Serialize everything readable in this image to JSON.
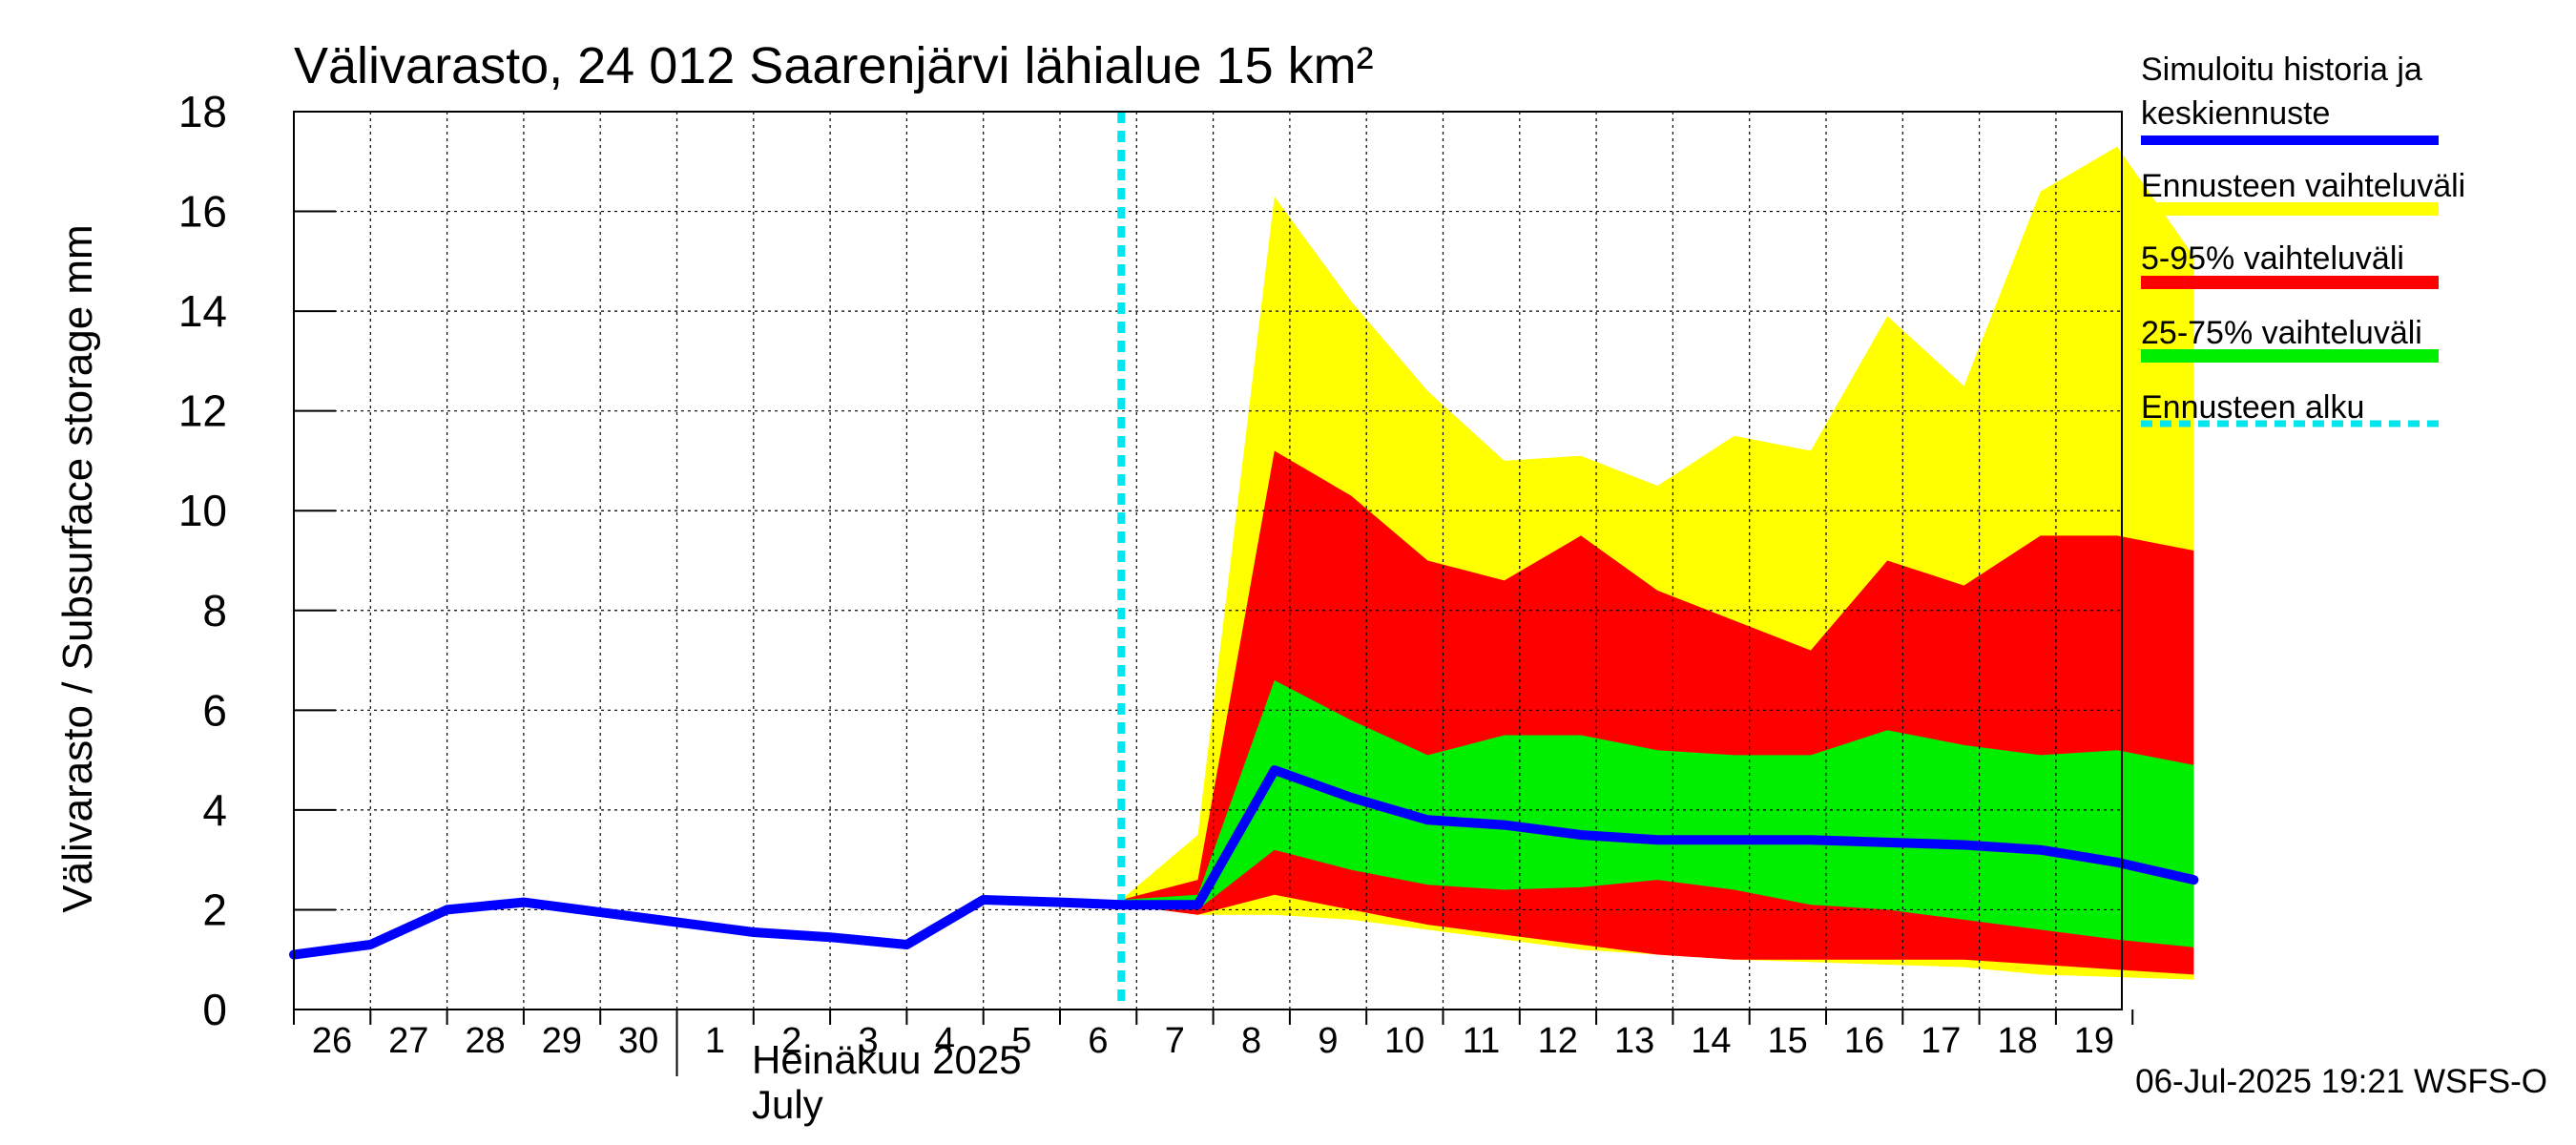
{
  "chart_data": {
    "type": "area",
    "title": "Välivarasto, 24 012 Saarenjärvi lähialue 15 km²",
    "ylabel": "Välivarasto / Subsurface storage  mm",
    "ylim": [
      0,
      18
    ],
    "yticks": [
      "0",
      "2",
      "4",
      "6",
      "8",
      "10",
      "12",
      "14",
      "16",
      "18"
    ],
    "x_tick_labels": [
      "26",
      "27",
      "28",
      "29",
      "30",
      "1",
      "2",
      "3",
      "4",
      "5",
      "6",
      "7",
      "8",
      "9",
      "10",
      "11",
      "12",
      "13",
      "14",
      "15",
      "16",
      "17",
      "18",
      "19"
    ],
    "x_month_label": "Heinäkuu  2025",
    "x_month_label_en": "July",
    "footer": "06-Jul-2025 19:21 WSFS-O",
    "grid": true,
    "legend_position": "right",
    "legend": [
      {
        "label": "Simuloitu historia ja keskiennuste",
        "lines": [
          "Simuloitu historia ja",
          "keskiennuste"
        ],
        "color": "#0000ff",
        "style": "solid"
      },
      {
        "label": "Ennusteen vaihteluväli",
        "lines": [
          "Ennusteen vaihteluväli"
        ],
        "color": "#ffff00",
        "style": "band"
      },
      {
        "label": "5-95% vaihteluväli",
        "lines": [
          "5-95% vaihteluväli"
        ],
        "color": "#ff0000",
        "style": "band"
      },
      {
        "label": "25-75% vaihteluväli",
        "lines": [
          "25-75% vaihteluväli"
        ],
        "color": "#00ee00",
        "style": "band"
      },
      {
        "label": "Ennusteen alku",
        "lines": [
          "Ennusteen alku"
        ],
        "color": "#00e5ee",
        "style": "dashed"
      }
    ],
    "x_start_day": 26,
    "forecast_start": 10.8,
    "bands": {
      "x": [
        10.8,
        11.8,
        12.8,
        13.8,
        14.8,
        15.8,
        16.8,
        17.8,
        18.8,
        19.8,
        20.8,
        21.8,
        22.8,
        23.8,
        24.8
      ],
      "yellow_upper": [
        2.2,
        3.5,
        16.3,
        14.2,
        12.4,
        11.0,
        11.1,
        10.5,
        11.5,
        11.2,
        13.9,
        12.5,
        16.4,
        17.3,
        15.1
      ],
      "yellow_lower": [
        2.1,
        1.9,
        1.9,
        1.8,
        1.6,
        1.4,
        1.2,
        1.1,
        1.0,
        0.95,
        0.9,
        0.85,
        0.7,
        0.65,
        0.6
      ],
      "red_upper": [
        2.2,
        2.6,
        11.2,
        10.3,
        9.0,
        8.6,
        9.5,
        8.4,
        7.8,
        7.2,
        9.0,
        8.5,
        9.5,
        9.5,
        9.2
      ],
      "red_lower": [
        2.1,
        1.9,
        2.3,
        2.0,
        1.7,
        1.5,
        1.3,
        1.1,
        1.0,
        1.0,
        1.0,
        1.0,
        0.9,
        0.8,
        0.7
      ],
      "green_upper": [
        2.2,
        2.3,
        6.6,
        5.8,
        5.1,
        5.5,
        5.5,
        5.2,
        5.1,
        5.1,
        5.6,
        5.3,
        5.1,
        5.2,
        4.9
      ],
      "green_lower": [
        2.1,
        2.0,
        3.2,
        2.8,
        2.5,
        2.4,
        2.45,
        2.6,
        2.4,
        2.1,
        2.0,
        1.8,
        1.6,
        1.4,
        1.25
      ]
    },
    "series": [
      {
        "name": "Simuloitu historia ja keskiennuste",
        "color": "#0000ff",
        "x": [
          0.0,
          1.0,
          2.0,
          3.0,
          4.0,
          5.0,
          6.0,
          7.0,
          8.0,
          9.0,
          10.0,
          10.8,
          11.8,
          12.8,
          13.8,
          14.8,
          15.8,
          16.8,
          17.8,
          18.8,
          19.8,
          20.8,
          21.8,
          22.8,
          23.8,
          24.8
        ],
        "values": [
          1.1,
          1.3,
          2.0,
          2.15,
          1.95,
          1.75,
          1.55,
          1.45,
          1.3,
          2.2,
          2.15,
          2.1,
          2.1,
          4.8,
          4.25,
          3.8,
          3.7,
          3.5,
          3.4,
          3.4,
          3.4,
          3.35,
          3.3,
          3.2,
          2.95,
          2.6
        ]
      }
    ]
  }
}
